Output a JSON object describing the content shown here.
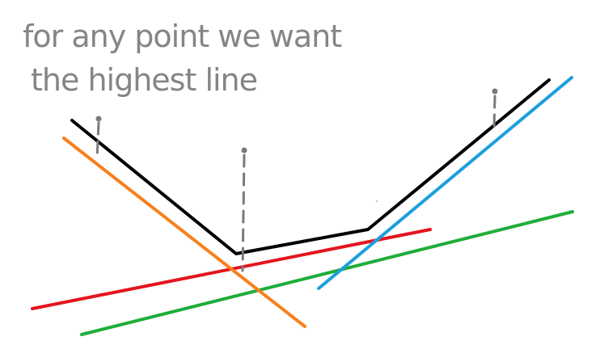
{
  "note": {
    "line1": "for any point we want",
    "line2": "the highest line"
  },
  "colors": {
    "envelope": "#000000",
    "orange": "#f7801f",
    "red": "#e3151f",
    "green": "#1fad3b",
    "blue": "#1b9fde",
    "marker": "#7a7a7a",
    "text": "#858585"
  }
}
